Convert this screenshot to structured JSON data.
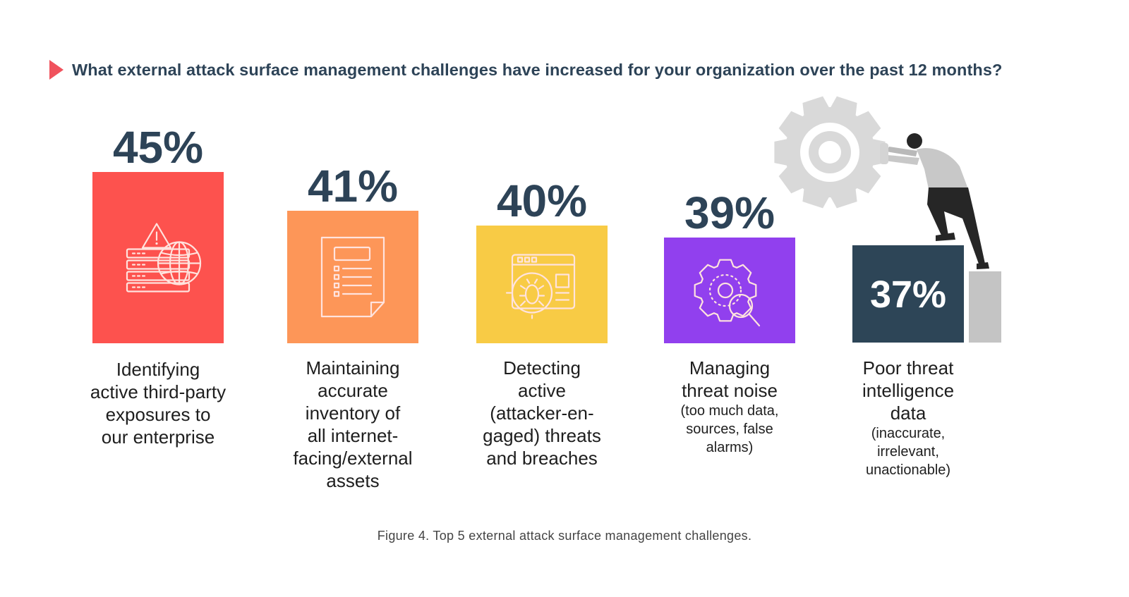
{
  "question": "What external attack surface management challenges have increased for your organization over the past 12 months?",
  "caption": "Figure 4. Top 5 external attack surface management challenges.",
  "colors": {
    "question_marker": "#f0525d",
    "question_text": "#2d4357",
    "value_text": "#2d4357",
    "gear": "#d9d9d9"
  },
  "chart_data": {
    "type": "bar",
    "title": "What external attack surface management challenges have increased for your organization over the past 12 months?",
    "unit": "%",
    "categories": [
      "Identifying active third-party exposures to our enterprise",
      "Maintaining accurate inventory of all internet-facing/external assets",
      "Detecting active (attacker-engaged) threats and breaches",
      "Managing threat noise (too much data, sources, false alarms)",
      "Poor threat intelligence data (inaccurate, irrelevant, unactionable)"
    ],
    "values": [
      45,
      41,
      40,
      39,
      37
    ],
    "value_labels": [
      "45%",
      "41%",
      "40%",
      "39%",
      "37%"
    ],
    "bar_colors": [
      "#fd524e",
      "#fd9658",
      "#f8cb45",
      "#9140ee",
      "#2d4557"
    ],
    "icons": [
      "server-warning-globe-icon",
      "document-list-icon",
      "bug-target-browser-icon",
      "gear-search-icon",
      "none"
    ]
  },
  "labels": [
    {
      "main": [
        "Identifying",
        "active third-party",
        "exposures to",
        "our enterprise"
      ],
      "sub": []
    },
    {
      "main": [
        "Maintaining",
        "accurate",
        "inventory of",
        "all internet-",
        "facing/external",
        "assets"
      ],
      "sub": []
    },
    {
      "main": [
        "Detecting",
        "active",
        "(attacker-en-",
        "gaged) threats",
        "and breaches"
      ],
      "sub": []
    },
    {
      "main": [
        "Managing",
        "threat noise"
      ],
      "sub": [
        "(too much data,",
        "sources, false",
        "alarms)"
      ]
    },
    {
      "main": [
        "Poor threat",
        "intelligence",
        "data"
      ],
      "sub": [
        "(inaccurate,",
        "irrelevant,",
        "unactionable)"
      ]
    }
  ]
}
